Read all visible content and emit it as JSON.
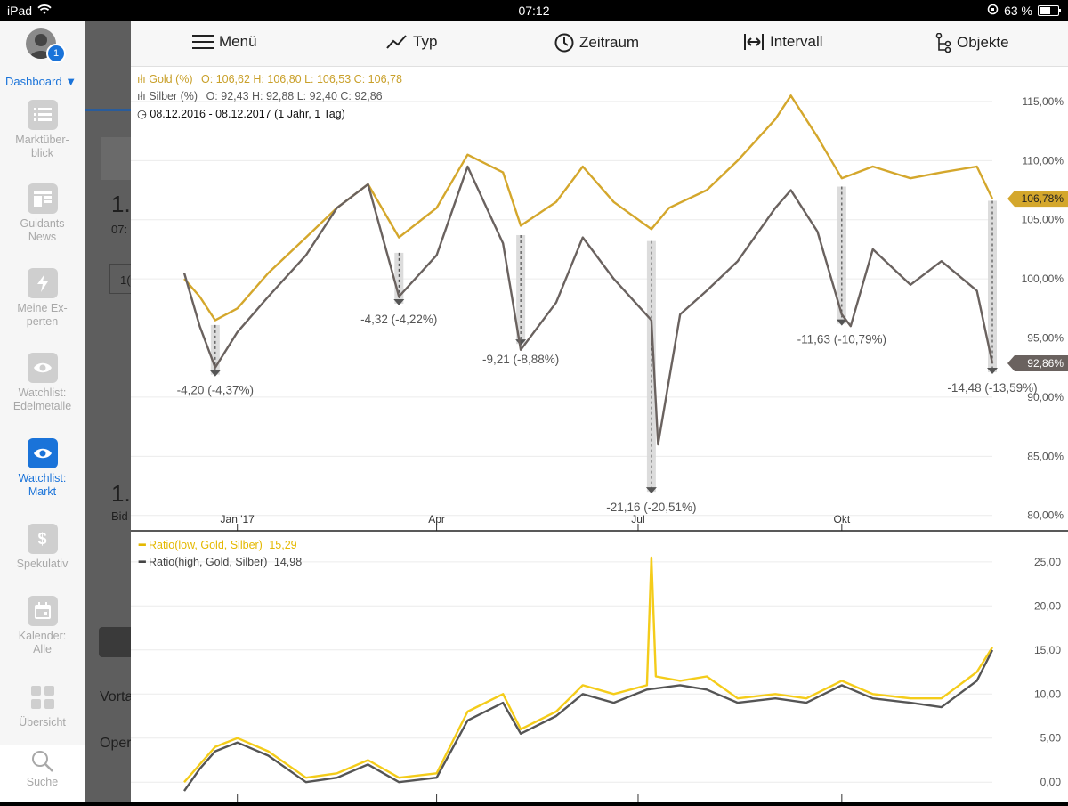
{
  "status_bar": {
    "device": "iPad",
    "time": "07:12",
    "battery": "63 %"
  },
  "sidebar": {
    "dashboard_label": "Dashboard ▼",
    "avatar_badge": "1",
    "items": [
      {
        "label": "Marktüber-\nblick",
        "icon": "list-icon"
      },
      {
        "label": "Guidants\nNews",
        "icon": "news-icon"
      },
      {
        "label": "Meine Ex-\nperten",
        "icon": "bolt-icon"
      },
      {
        "label": "Watchlist:\nEdelmetalle",
        "icon": "eye-icon"
      },
      {
        "label": "Watchlist:\nMarkt",
        "icon": "eye-icon",
        "active": true
      },
      {
        "label": "Spekulativ",
        "icon": "dollar-icon"
      },
      {
        "label": "Kalender:\nAlle",
        "icon": "calendar-icon"
      },
      {
        "label": "Übersicht",
        "icon": "grid-icon"
      }
    ],
    "search_label": "Suche"
  },
  "underlay": {
    "a": "1.",
    "b": "07:",
    "c": "1.",
    "d": "Bid",
    "e": "Vorta",
    "f": "Oper",
    "g": "1("
  },
  "toolbar": {
    "menu": "Menü",
    "type": "Typ",
    "period": "Zeitraum",
    "interval": "Intervall",
    "objects": "Objekte"
  },
  "legend": {
    "gold_title": "Gold (%)",
    "gold_ohlc": "O: 106,62  H: 106,80  L: 106,53  C: 106,78",
    "silver_title": "Silber (%)",
    "silver_ohlc": "O: 92,43  H: 92,88  L: 92,40  C: 92,86",
    "range": "08.12.2016 - 08.12.2017  (1 Jahr, 1 Tag)",
    "ratio_low_title": "Ratio(low, Gold, Silber)",
    "ratio_low_value": "15,29",
    "ratio_high_title": "Ratio(high, Gold, Silber)",
    "ratio_high_value": "14,98"
  },
  "colors": {
    "gold": "#d4a72c",
    "silver": "#6a625f",
    "ratio_low": "#f4cc1a",
    "ratio_high": "#555555",
    "grid": "#ececec",
    "accent": "#1a73d9"
  },
  "chart_data": [
    {
      "type": "line",
      "title": "",
      "x_ticks": [
        "Jan '17",
        "Apr",
        "Jul",
        "Okt"
      ],
      "x_tick_dates": [
        "2017-01-01",
        "2017-04-01",
        "2017-07-01",
        "2017-10-01"
      ],
      "x_range": [
        "2016-12-08",
        "2017-12-08"
      ],
      "y_ticks": [
        "80,00%",
        "85,00%",
        "90,00%",
        "95,00%",
        "100,00%",
        "105,00%",
        "110,00%",
        "115,00%"
      ],
      "ylim": [
        79,
        116.5
      ],
      "last_values": {
        "gold": "106,78%",
        "silver": "92,86%"
      },
      "series": [
        {
          "name": "Gold (%)",
          "x": [
            "2016-12-08",
            "2016-12-15",
            "2016-12-22",
            "2017-01-01",
            "2017-01-15",
            "2017-02-01",
            "2017-02-15",
            "2017-03-01",
            "2017-03-15",
            "2017-04-01",
            "2017-04-15",
            "2017-05-01",
            "2017-05-09",
            "2017-05-25",
            "2017-06-06",
            "2017-06-20",
            "2017-07-07",
            "2017-07-15",
            "2017-08-01",
            "2017-08-15",
            "2017-09-01",
            "2017-09-08",
            "2017-09-20",
            "2017-10-01",
            "2017-10-15",
            "2017-11-01",
            "2017-11-15",
            "2017-12-01",
            "2017-12-08"
          ],
          "values": [
            100,
            98.5,
            96.5,
            97.5,
            100.5,
            103.5,
            106,
            108,
            103.5,
            106,
            110.5,
            109,
            104.5,
            106.5,
            109.5,
            106.5,
            104.2,
            106,
            107.5,
            110,
            113.5,
            115.5,
            112,
            108.5,
            109.5,
            108.5,
            109,
            109.5,
            106.78
          ]
        },
        {
          "name": "Silber (%)",
          "x": [
            "2016-12-08",
            "2016-12-15",
            "2016-12-22",
            "2017-01-01",
            "2017-01-15",
            "2017-02-01",
            "2017-02-15",
            "2017-03-01",
            "2017-03-15",
            "2017-04-01",
            "2017-04-15",
            "2017-05-01",
            "2017-05-09",
            "2017-05-25",
            "2017-06-06",
            "2017-06-20",
            "2017-07-07",
            "2017-07-10",
            "2017-07-20",
            "2017-08-01",
            "2017-08-15",
            "2017-09-01",
            "2017-09-08",
            "2017-09-20",
            "2017-10-01",
            "2017-10-05",
            "2017-10-15",
            "2017-11-01",
            "2017-11-15",
            "2017-12-01",
            "2017-12-08"
          ],
          "values": [
            100.5,
            96,
            92.5,
            95.5,
            98.5,
            102,
            106,
            108,
            98.5,
            102,
            109.5,
            103,
            94,
            98,
            103.5,
            100,
            96.5,
            86,
            97,
            99,
            101.5,
            106,
            107.5,
            104,
            97,
            96,
            102.5,
            99.5,
            101.5,
            99,
            92.86
          ]
        }
      ],
      "annotations": [
        {
          "label": "-4,20 (-4,37%)",
          "x": "2016-12-22",
          "from": 96.1,
          "to": 91.9
        },
        {
          "label": "-4,32 (-4,22%)",
          "x": "2017-03-15",
          "from": 102.2,
          "to": 97.9
        },
        {
          "label": "-9,21 (-8,88%)",
          "x": "2017-05-09",
          "from": 103.7,
          "to": 94.5
        },
        {
          "label": "-21,16 (-20,51%)",
          "x": "2017-07-07",
          "from": 103.2,
          "to": 82.0
        },
        {
          "label": "-11,63 (-10,79%)",
          "x": "2017-10-01",
          "from": 107.8,
          "to": 96.2
        },
        {
          "label": "-14,48 (-13,59%)",
          "x": "2017-12-08",
          "from": 106.6,
          "to": 92.1
        }
      ]
    },
    {
      "type": "line",
      "y_ticks": [
        "0,00",
        "5,00",
        "10,00",
        "15,00",
        "20,00",
        "25,00"
      ],
      "ylim": [
        -1.8,
        26.5
      ],
      "series": [
        {
          "name": "Ratio(low, Gold, Silber)",
          "x": [
            "2016-12-08",
            "2016-12-15",
            "2016-12-22",
            "2017-01-01",
            "2017-01-15",
            "2017-02-01",
            "2017-02-15",
            "2017-03-01",
            "2017-03-15",
            "2017-04-01",
            "2017-04-15",
            "2017-05-01",
            "2017-05-09",
            "2017-05-25",
            "2017-06-06",
            "2017-06-20",
            "2017-07-05",
            "2017-07-07",
            "2017-07-09",
            "2017-07-20",
            "2017-08-01",
            "2017-08-15",
            "2017-09-01",
            "2017-09-15",
            "2017-10-01",
            "2017-10-15",
            "2017-11-01",
            "2017-11-15",
            "2017-12-01",
            "2017-12-08"
          ],
          "values": [
            0,
            2,
            4,
            5,
            3.5,
            0.5,
            1,
            2.5,
            0.5,
            1,
            8,
            10,
            6,
            8,
            11,
            10,
            11,
            25.5,
            12,
            11.5,
            12,
            9.5,
            10,
            9.5,
            11.5,
            10,
            9.5,
            9.5,
            12.5,
            15.29
          ]
        },
        {
          "name": "Ratio(high, Gold, Silber)",
          "x": [
            "2016-12-08",
            "2016-12-15",
            "2016-12-22",
            "2017-01-01",
            "2017-01-15",
            "2017-02-01",
            "2017-02-15",
            "2017-03-01",
            "2017-03-15",
            "2017-04-01",
            "2017-04-15",
            "2017-05-01",
            "2017-05-09",
            "2017-05-25",
            "2017-06-06",
            "2017-06-20",
            "2017-07-05",
            "2017-07-20",
            "2017-08-01",
            "2017-08-15",
            "2017-09-01",
            "2017-09-15",
            "2017-10-01",
            "2017-10-15",
            "2017-11-01",
            "2017-11-15",
            "2017-12-01",
            "2017-12-08"
          ],
          "values": [
            -1,
            1.5,
            3.5,
            4.5,
            3,
            0,
            0.5,
            2,
            0,
            0.5,
            7,
            9,
            5.5,
            7.5,
            10,
            9,
            10.5,
            11,
            10.5,
            9,
            9.5,
            9,
            11,
            9.5,
            9,
            8.5,
            11.5,
            14.98
          ]
        }
      ]
    }
  ]
}
